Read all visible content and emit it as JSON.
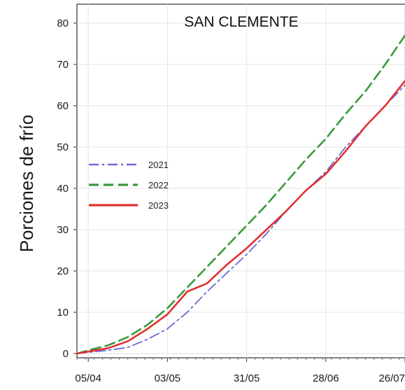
{
  "chart_data": {
    "type": "line",
    "title": "SAN CLEMENTE",
    "xlabel": "",
    "ylabel": "Porciones de frío",
    "x_ticks": [
      "05/04",
      "03/05",
      "31/05",
      "28/06",
      "26/07"
    ],
    "x_range": [
      "2023-04-01",
      "2023-07-26"
    ],
    "ylim": [
      0,
      80
    ],
    "y_ticks": [
      0,
      10,
      20,
      30,
      40,
      50,
      60,
      70,
      80
    ],
    "grid": true,
    "legend_position": "center-left",
    "series": [
      {
        "name": "2021",
        "color": "#6b6bd6",
        "dash": "dash-dot",
        "x": [
          "2023-04-01",
          "2023-04-05",
          "2023-04-12",
          "2023-04-19",
          "2023-04-26",
          "2023-05-03",
          "2023-05-10",
          "2023-05-17",
          "2023-05-24",
          "2023-05-31",
          "2023-06-07",
          "2023-06-14",
          "2023-06-21",
          "2023-06-28",
          "2023-07-05",
          "2023-07-12",
          "2023-07-19",
          "2023-07-26"
        ],
        "y": [
          0,
          0.3,
          0.8,
          1.5,
          3.5,
          6,
          10,
          15,
          19.5,
          24,
          29,
          34.5,
          39.5,
          44,
          50,
          55,
          60,
          65
        ]
      },
      {
        "name": "2022",
        "color": "#3a9a3a",
        "dash": "dashed",
        "x": [
          "2023-04-01",
          "2023-04-05",
          "2023-04-12",
          "2023-04-19",
          "2023-04-26",
          "2023-05-03",
          "2023-05-10",
          "2023-05-17",
          "2023-05-24",
          "2023-05-31",
          "2023-06-07",
          "2023-06-14",
          "2023-06-21",
          "2023-06-28",
          "2023-07-05",
          "2023-07-12",
          "2023-07-19",
          "2023-07-26"
        ],
        "y": [
          0,
          0.8,
          2,
          4,
          7,
          11,
          16,
          21,
          26,
          31,
          36,
          41.5,
          47,
          52,
          58,
          63.5,
          70,
          77
        ]
      },
      {
        "name": "2023",
        "color": "#e03030",
        "dash": "solid",
        "x": [
          "2023-04-01",
          "2023-04-05",
          "2023-04-12",
          "2023-04-19",
          "2023-04-26",
          "2023-05-03",
          "2023-05-10",
          "2023-05-17",
          "2023-05-24",
          "2023-05-31",
          "2023-06-07",
          "2023-06-14",
          "2023-06-21",
          "2023-06-28",
          "2023-07-05",
          "2023-07-12",
          "2023-07-19",
          "2023-07-26"
        ],
        "y": [
          0,
          0.5,
          1.3,
          3,
          6,
          9.5,
          15,
          17,
          21.5,
          25.5,
          30,
          34.5,
          39.5,
          43.5,
          49,
          55,
          60,
          66
        ]
      }
    ]
  }
}
